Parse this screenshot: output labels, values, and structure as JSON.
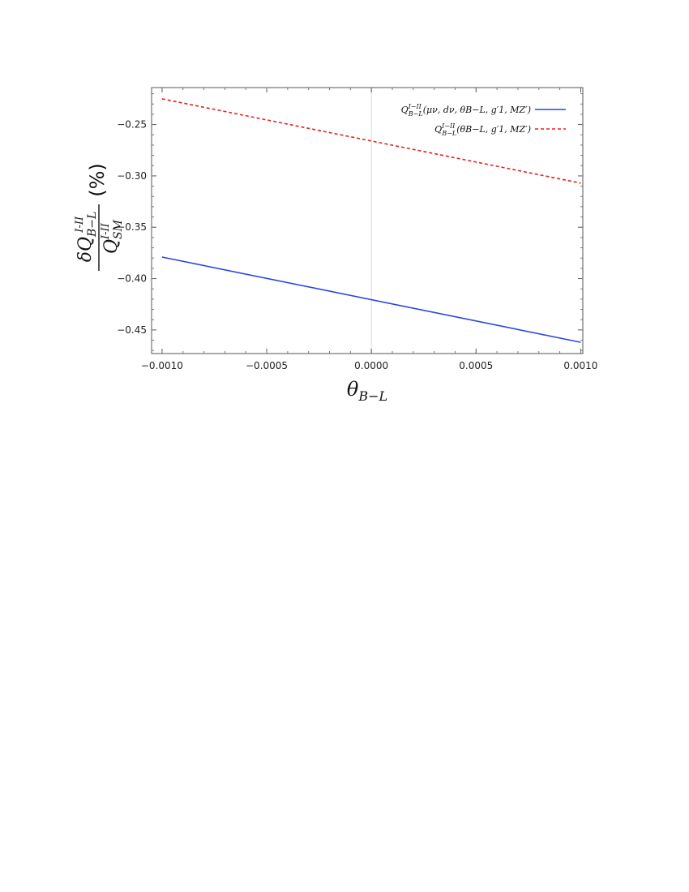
{
  "chart_data": {
    "type": "line",
    "xlabel": "θB−L",
    "ylabel": {
      "numerator": "δQ",
      "numerator_sup": "I-II",
      "numerator_sub": "B−L",
      "denominator": "Q",
      "denominator_sup": "I-II",
      "denominator_sub": "SM",
      "unit": "(%)"
    },
    "xlim": [
      -0.00105,
      0.00101
    ],
    "ylim": [
      -0.473,
      -0.214
    ],
    "xticks": [
      -0.001,
      -0.0005,
      0.0,
      0.0005,
      0.001
    ],
    "xtick_labels": [
      "-0.0010",
      "-0.0005",
      "0.0000",
      "0.0005",
      "0.0010"
    ],
    "yticks": [
      -0.25,
      -0.3,
      -0.35,
      -0.4,
      -0.45
    ],
    "ytick_labels": [
      "-0.25",
      "-0.30",
      "-0.35",
      "-0.40",
      "-0.45"
    ],
    "legend_position": "top-right",
    "series": [
      {
        "name": "Q^{I−II}_{B−L}(μ_ν, d_ν, θ_{B−L}, g′_1, M_{Z′})",
        "legend": {
          "main": "Q",
          "sup": "I−II",
          "sub": "B−L",
          "args": "(μν, dν, θB−L, g′1, MZ′)"
        },
        "color": "#2a45e0",
        "style": "solid",
        "x": [
          -0.001,
          0.001
        ],
        "y": [
          -0.379,
          -0.462
        ]
      },
      {
        "name": "Q^{I−II}_{B−L}(θ_{B−L}, g′_1, M_{Z′})",
        "legend": {
          "main": "Q",
          "sup": "I−II",
          "sub": "B−L",
          "args": "(θB−L, g′1, MZ′)"
        },
        "color": "#e8201c",
        "style": "dashed",
        "x": [
          -0.001,
          0.001
        ],
        "y": [
          -0.225,
          -0.307
        ]
      }
    ]
  }
}
